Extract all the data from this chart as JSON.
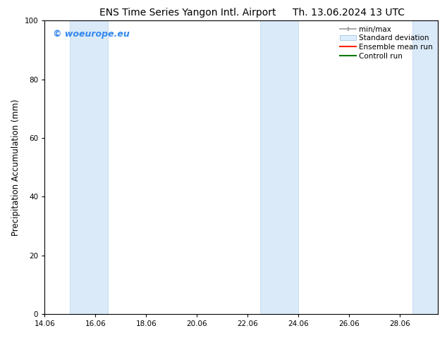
{
  "title_left": "ENS Time Series Yangon Intl. Airport",
  "title_right": "Th. 13.06.2024 13 UTC",
  "ylabel": "Precipitation Accumulation (mm)",
  "xlim": [
    14.0,
    29.5
  ],
  "ylim": [
    0,
    100
  ],
  "yticks": [
    0,
    20,
    40,
    60,
    80,
    100
  ],
  "xtick_labels": [
    "14.06",
    "16.06",
    "18.06",
    "20.06",
    "22.06",
    "24.06",
    "26.06",
    "28.06"
  ],
  "xtick_positions": [
    14.0,
    16.0,
    18.0,
    20.0,
    22.0,
    24.0,
    26.0,
    28.0
  ],
  "shaded_bands": [
    {
      "x_start": 15.0,
      "x_end": 16.5
    },
    {
      "x_start": 22.5,
      "x_end": 24.0
    },
    {
      "x_start": 28.5,
      "x_end": 29.5
    }
  ],
  "band_color": "#daeaf8",
  "band_edge_color": "#b8d4ec",
  "watermark_text": "© woeurope.eu",
  "watermark_color": "#3388ee",
  "background_color": "#ffffff",
  "legend_entries": [
    {
      "label": "min/max",
      "color": "#999999",
      "lw": 1.2,
      "style": "errorbar"
    },
    {
      "label": "Standard deviation",
      "color": "#ccddee",
      "lw": 6,
      "style": "band"
    },
    {
      "label": "Ensemble mean run",
      "color": "#ff2200",
      "lw": 1.5,
      "style": "line"
    },
    {
      "label": "Controll run",
      "color": "#007700",
      "lw": 1.5,
      "style": "line"
    }
  ],
  "title_fontsize": 10,
  "axis_label_fontsize": 8.5,
  "tick_fontsize": 7.5,
  "watermark_fontsize": 9,
  "legend_fontsize": 7.5
}
